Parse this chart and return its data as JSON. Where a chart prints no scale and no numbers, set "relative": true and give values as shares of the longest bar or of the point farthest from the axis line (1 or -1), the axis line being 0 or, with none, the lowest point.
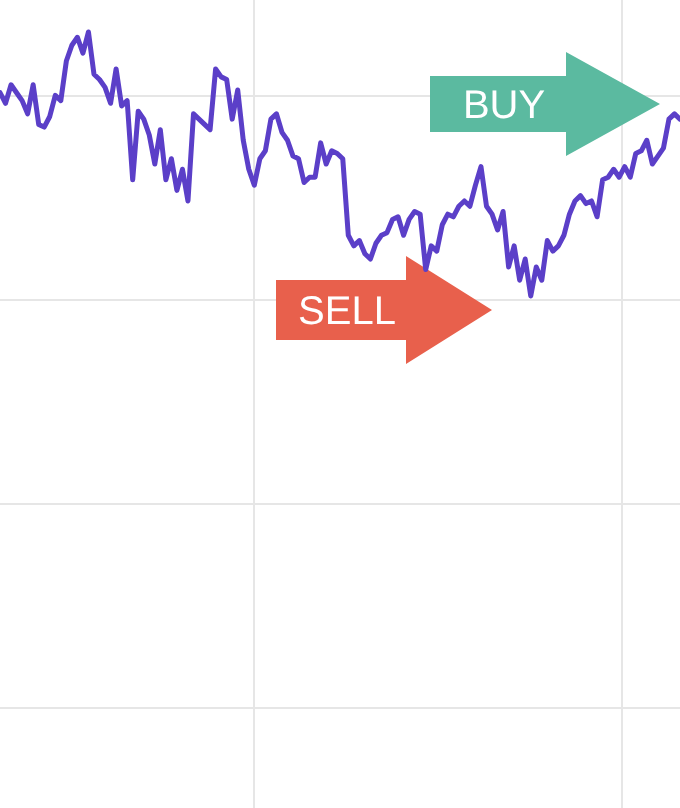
{
  "chart_data": {
    "type": "line",
    "relative": true,
    "grid": true,
    "categories": [
      null,
      null,
      null,
      null,
      null,
      null,
      null,
      null,
      null,
      null,
      null,
      null,
      null,
      null,
      null,
      null,
      null,
      null,
      null,
      null,
      null,
      null,
      null,
      null,
      null,
      null,
      null,
      null,
      null,
      null,
      null,
      null,
      null,
      null,
      null,
      null,
      null,
      null,
      null,
      null,
      null,
      null,
      null,
      null,
      null,
      null,
      null,
      null,
      null,
      null,
      null,
      null,
      null,
      null,
      null,
      null,
      null,
      null,
      null,
      null,
      null,
      null,
      null,
      null,
      null,
      null,
      null,
      null,
      null,
      null,
      null,
      null,
      null,
      null,
      null,
      null,
      null,
      null,
      null,
      null,
      null,
      null,
      null,
      null,
      null,
      null,
      null,
      null,
      null,
      null,
      null,
      null,
      null,
      null,
      null,
      null,
      null,
      null,
      null,
      null,
      null,
      null,
      null,
      null,
      null,
      null,
      null,
      null,
      null,
      null,
      null,
      null,
      null,
      null,
      null,
      null,
      null,
      null,
      null,
      null,
      null,
      null,
      null,
      null
    ],
    "series": [
      {
        "color": "#5b3fc8",
        "values": [
          0.77,
          0.73,
          0.8,
          0.77,
          0.74,
          0.69,
          0.8,
          0.65,
          0.64,
          0.68,
          0.76,
          0.74,
          0.89,
          0.95,
          0.98,
          0.92,
          1,
          0.84,
          0.82,
          0.79,
          0.73,
          0.86,
          0.72,
          0.74,
          0.44,
          0.7,
          0.67,
          0.61,
          0.5,
          0.63,
          0.44,
          0.52,
          0.4,
          0.48,
          0.36,
          0.69,
          0.67,
          0.65,
          0.63,
          0.86,
          0.83,
          0.82,
          0.67,
          0.78,
          0.59,
          0.48,
          0.42,
          0.52,
          0.55,
          0.67,
          0.69,
          0.62,
          0.59,
          0.53,
          0.52,
          0.43,
          0.45,
          0.45,
          0.58,
          0.5,
          0.55,
          0.54,
          0.52,
          0.23,
          0.19,
          0.21,
          0.16,
          0.14,
          0.2,
          0.23,
          0.24,
          0.29,
          0.3,
          0.23,
          0.29,
          0.32,
          0.31,
          0.1,
          0.19,
          0.17,
          0.27,
          0.31,
          0.3,
          0.34,
          0.36,
          0.34,
          0.42,
          0.49,
          0.34,
          0.31,
          0.25,
          0.32,
          0.11,
          0.19,
          0.06,
          0.14,
          0,
          0.11,
          0.06,
          0.21,
          0.17,
          0.19,
          0.23,
          0.31,
          0.36,
          0.38,
          0.35,
          0.36,
          0.3,
          0.44,
          0.45,
          0.48,
          0.45,
          0.49,
          0.45,
          0.54,
          0.55,
          0.59,
          0.5,
          0.53,
          0.56,
          0.67,
          0.69,
          0.67
        ]
      }
    ],
    "annotations": [
      "SELL",
      "BUY"
    ]
  }
}
